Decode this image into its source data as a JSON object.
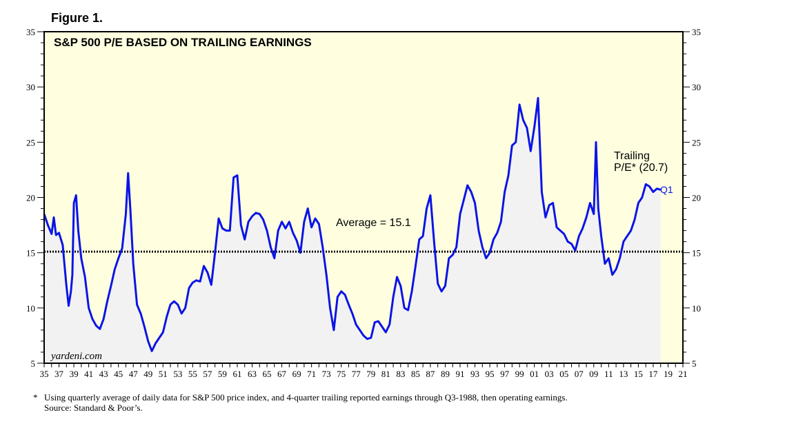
{
  "figure_label": "Figure 1.",
  "footnote": {
    "marker": "*",
    "line1": "Using quarterly average of daily data for S&P 500 price index, and 4-quarter trailing reported earnings through Q3-1988, then operating earnings.",
    "line2": "Source: Standard & Poor’s."
  },
  "colors": {
    "plot_bg": "#ffffe0",
    "area_fill": "#f2f2f2",
    "line": "#0a14e6",
    "average_line": "#000000",
    "frame": "#000000"
  },
  "chart_data": {
    "type": "line",
    "title": "S&P 500 P/E BASED ON TRAILING EARNINGS",
    "xlabel": "",
    "ylabel": "",
    "ylim": [
      5,
      35
    ],
    "yticks": [
      5,
      10,
      15,
      20,
      25,
      30,
      35
    ],
    "xlim": [
      1935,
      2021
    ],
    "xtick_labels": [
      "35",
      "37",
      "39",
      "41",
      "43",
      "45",
      "47",
      "49",
      "51",
      "53",
      "55",
      "57",
      "59",
      "61",
      "63",
      "65",
      "67",
      "69",
      "71",
      "73",
      "75",
      "77",
      "79",
      "81",
      "83",
      "85",
      "87",
      "89",
      "91",
      "93",
      "95",
      "97",
      "99",
      "01",
      "03",
      "05",
      "07",
      "09",
      "11",
      "13",
      "15",
      "17",
      "19",
      "21"
    ],
    "average": {
      "value": 15.1,
      "label": "Average = 15.1"
    },
    "annotation_line1": "Trailing",
    "annotation_line2": "P/E* (20.7)",
    "end_label": "Q1",
    "watermark": "yardeni.com",
    "series": [
      {
        "name": "Trailing P/E",
        "x": [
          1935.0,
          1935.5,
          1936.0,
          1936.3,
          1936.6,
          1937.0,
          1937.5,
          1937.8,
          1938.0,
          1938.3,
          1938.6,
          1938.8,
          1939.0,
          1939.3,
          1939.6,
          1940.0,
          1940.5,
          1941.0,
          1941.5,
          1942.0,
          1942.5,
          1943.0,
          1943.5,
          1944.0,
          1944.5,
          1945.0,
          1945.5,
          1946.0,
          1946.3,
          1946.6,
          1947.0,
          1947.5,
          1948.0,
          1948.5,
          1949.0,
          1949.5,
          1950.0,
          1950.5,
          1951.0,
          1951.5,
          1952.0,
          1952.5,
          1953.0,
          1953.5,
          1954.0,
          1954.5,
          1955.0,
          1955.5,
          1956.0,
          1956.5,
          1957.0,
          1957.5,
          1958.0,
          1958.5,
          1959.0,
          1959.5,
          1960.0,
          1960.5,
          1961.0,
          1961.5,
          1962.0,
          1962.5,
          1963.0,
          1963.5,
          1964.0,
          1964.5,
          1965.0,
          1965.5,
          1966.0,
          1966.5,
          1967.0,
          1967.5,
          1968.0,
          1968.5,
          1969.0,
          1969.5,
          1970.0,
          1970.5,
          1971.0,
          1971.5,
          1972.0,
          1972.5,
          1973.0,
          1973.5,
          1974.0,
          1974.5,
          1975.0,
          1975.5,
          1976.0,
          1976.5,
          1977.0,
          1977.5,
          1978.0,
          1978.5,
          1979.0,
          1979.5,
          1980.0,
          1980.5,
          1981.0,
          1981.5,
          1982.0,
          1982.5,
          1983.0,
          1983.5,
          1984.0,
          1984.5,
          1985.0,
          1985.5,
          1986.0,
          1986.5,
          1987.0,
          1987.5,
          1988.0,
          1988.5,
          1989.0,
          1989.5,
          1990.0,
          1990.5,
          1991.0,
          1991.5,
          1992.0,
          1992.5,
          1993.0,
          1993.5,
          1994.0,
          1994.5,
          1995.0,
          1995.5,
          1996.0,
          1996.5,
          1997.0,
          1997.5,
          1998.0,
          1998.5,
          1999.0,
          1999.5,
          2000.0,
          2000.5,
          2001.0,
          2001.5,
          2002.0,
          2002.5,
          2003.0,
          2003.5,
          2004.0,
          2004.5,
          2005.0,
          2005.5,
          2006.0,
          2006.5,
          2007.0,
          2007.5,
          2008.0,
          2008.5,
          2009.0,
          2009.3,
          2009.6,
          2010.0,
          2010.5,
          2011.0,
          2011.5,
          2012.0,
          2012.5,
          2013.0,
          2013.5,
          2014.0,
          2014.5,
          2015.0,
          2015.5,
          2016.0,
          2016.5,
          2017.0,
          2017.5,
          2018.0
        ],
        "values": [
          18.5,
          17.5,
          16.7,
          18.2,
          16.6,
          16.8,
          15.7,
          13.5,
          12.0,
          10.2,
          11.5,
          13.0,
          19.5,
          20.2,
          17.0,
          14.5,
          12.8,
          10.0,
          9.0,
          8.4,
          8.1,
          9.0,
          10.6,
          12.0,
          13.5,
          14.5,
          15.4,
          18.5,
          22.2,
          19.0,
          14.0,
          10.3,
          9.5,
          8.3,
          7.0,
          6.1,
          6.8,
          7.3,
          7.8,
          9.2,
          10.3,
          10.6,
          10.3,
          9.5,
          10.0,
          11.8,
          12.3,
          12.5,
          12.4,
          13.8,
          13.2,
          12.1,
          15.0,
          18.1,
          17.2,
          17.0,
          17.0,
          21.8,
          22.0,
          17.5,
          16.2,
          17.8,
          18.3,
          18.6,
          18.5,
          18.0,
          17.0,
          15.5,
          14.5,
          17.0,
          17.8,
          17.2,
          17.8,
          16.8,
          16.1,
          15.0,
          17.8,
          19.0,
          17.3,
          18.1,
          17.6,
          15.5,
          13.0,
          10.0,
          8.0,
          11.0,
          11.5,
          11.2,
          10.3,
          9.5,
          8.5,
          8.0,
          7.5,
          7.2,
          7.3,
          8.7,
          8.8,
          8.3,
          7.8,
          8.5,
          11.0,
          12.8,
          12.0,
          10.0,
          9.8,
          11.5,
          13.8,
          16.2,
          16.5,
          19.0,
          20.2,
          16.0,
          12.2,
          11.5,
          12.0,
          14.5,
          14.8,
          15.5,
          18.5,
          19.8,
          21.1,
          20.5,
          19.5,
          17.0,
          15.5,
          14.5,
          15.0,
          16.2,
          16.8,
          17.8,
          20.5,
          22.0,
          24.7,
          25.0,
          28.4,
          27.0,
          26.3,
          24.2,
          26.4,
          29.0,
          20.5,
          18.2,
          19.3,
          19.5,
          17.3,
          17.0,
          16.7,
          16.0,
          15.8,
          15.2,
          16.5,
          17.2,
          18.2,
          19.5,
          18.5,
          25.0,
          19.0,
          16.5,
          14.0,
          14.5,
          13.0,
          13.5,
          14.5,
          16.0,
          16.5,
          17.0,
          18.0,
          19.5,
          20.0,
          21.2,
          21.0,
          20.5,
          20.8,
          20.7
        ]
      }
    ]
  }
}
